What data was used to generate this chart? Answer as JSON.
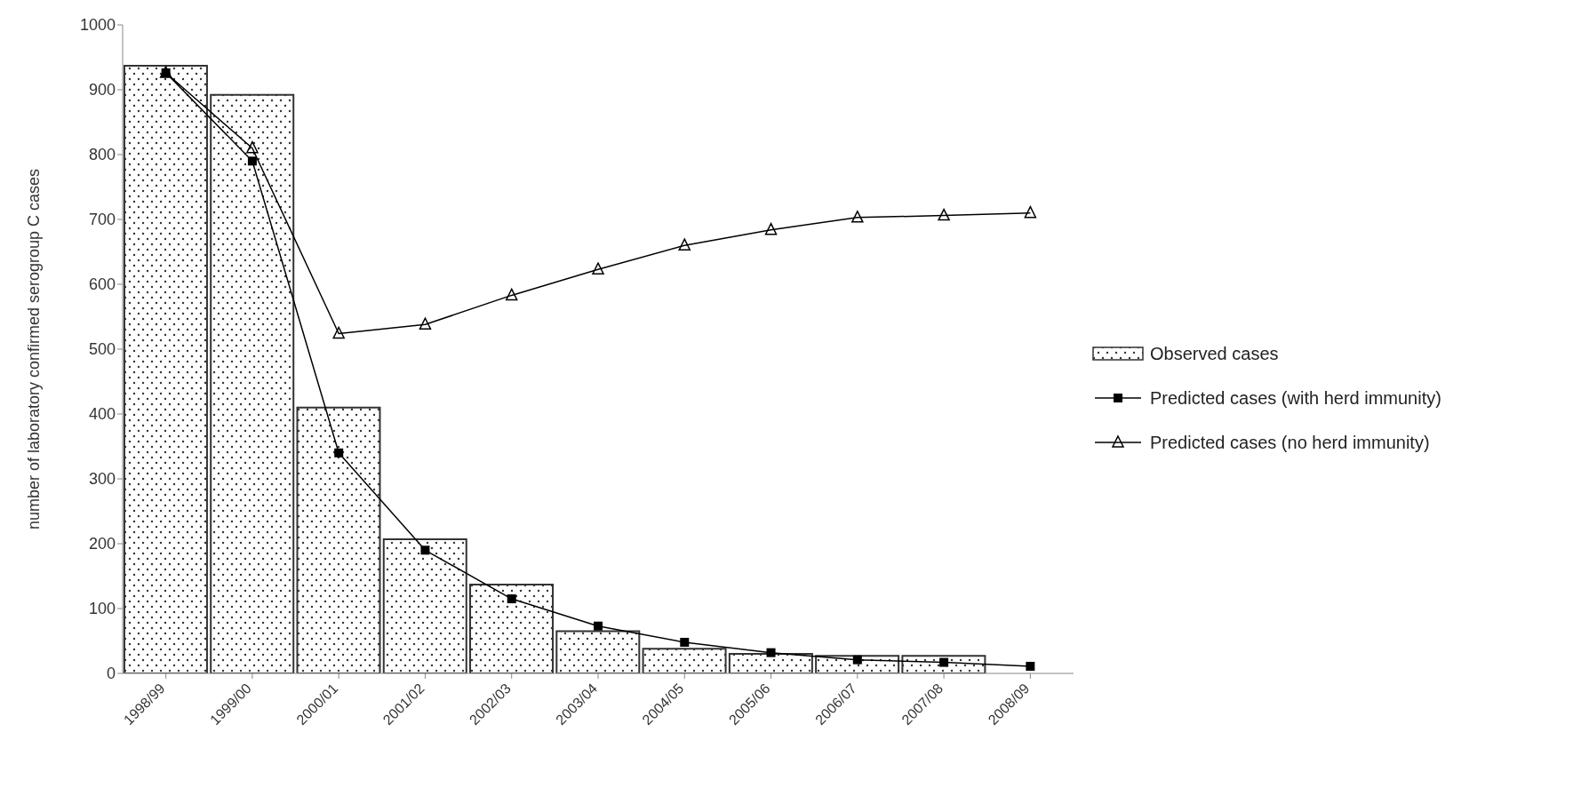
{
  "chart_data": {
    "type": "bar",
    "ylabel": "number of laboratory confirmed serogroup C cases",
    "categories": [
      "1998/99",
      "1999/00",
      "2000/01",
      "2001/02",
      "2002/03",
      "2003/04",
      "2004/05",
      "2005/06",
      "2006/07",
      "2007/08",
      "2008/09"
    ],
    "series": [
      {
        "name": "Observed cases",
        "color": "#333333",
        "values": [
          937,
          892,
          410,
          207,
          137,
          65,
          38,
          30,
          27,
          27,
          null
        ]
      },
      {
        "name": "Predicted cases (with herd immunity)",
        "type": "line",
        "color": "#000000",
        "marker": "square",
        "values": [
          926,
          790,
          340,
          190,
          115,
          73,
          48,
          32,
          21,
          17,
          11
        ]
      },
      {
        "name": "Predicted cases (no herd immunity)",
        "type": "line",
        "color": "#000000",
        "marker": "triangle",
        "values": [
          926,
          810,
          524,
          538,
          583,
          623,
          660,
          684,
          703,
          706,
          710
        ]
      }
    ],
    "ylim": [
      0,
      1000
    ],
    "yticks": [
      0,
      100,
      200,
      300,
      400,
      500,
      600,
      700,
      800,
      900,
      1000
    ],
    "grid": false,
    "legend": "right"
  }
}
